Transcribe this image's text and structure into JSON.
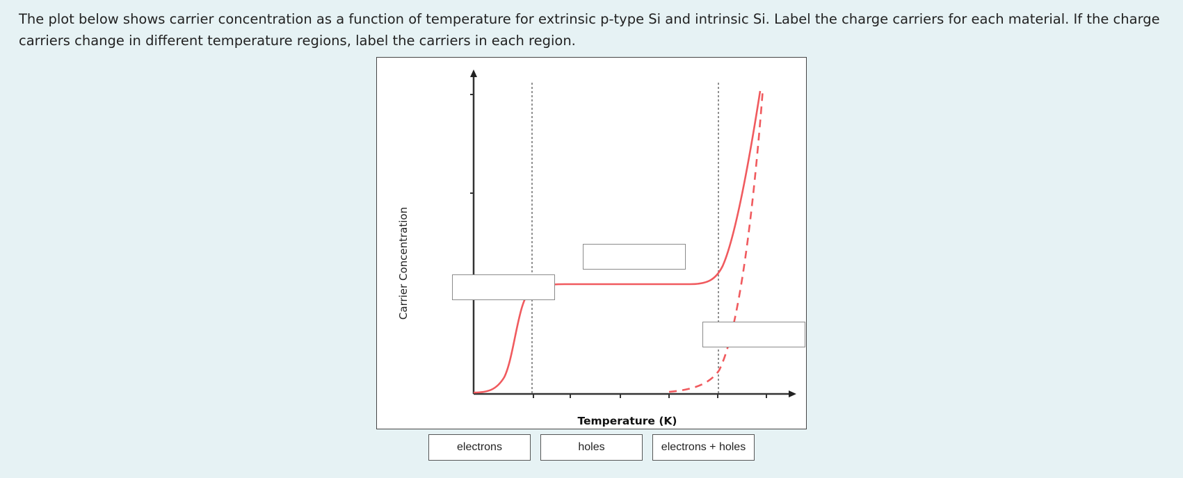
{
  "question": {
    "text": "The plot below shows carrier concentration as a function of temperature for extrinsic p-type Si and intrinsic Si. Label the charge carriers for each material. If the charge carriers change in different temperature regions, label the carriers in each region."
  },
  "plot": {
    "x_axis_label": "Temperature (K)",
    "y_axis_label": "Carrier Concentration",
    "curve_color": "#f05a5e",
    "curve_light_color": "#f6a5a7",
    "divider_color": "#555555"
  },
  "drag_options": [
    {
      "label": "electrons"
    },
    {
      "label": "holes"
    },
    {
      "label": "electrons + holes"
    }
  ]
}
